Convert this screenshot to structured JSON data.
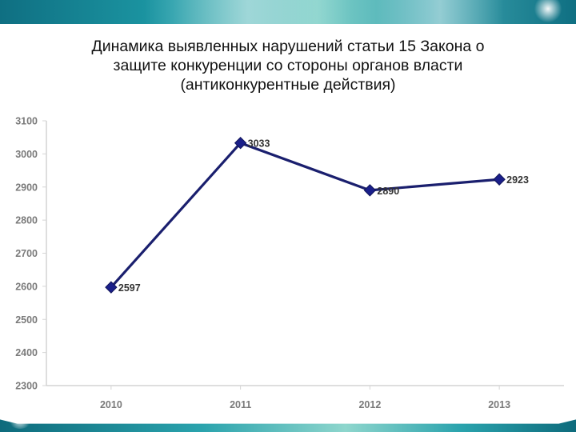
{
  "slide": {
    "title": "Динамика выявленных нарушений статьи 15 Закона о\nзащите конкуренции со стороны органов власти\n(антиконкурентные действия)"
  },
  "colors": {
    "series_line": "#1a1f6e",
    "marker": "#1a1f8a",
    "banner_teal": "#1d9aa6"
  },
  "chart_data": {
    "type": "line",
    "title": "",
    "xlabel": "",
    "ylabel": "",
    "categories": [
      "2010",
      "2011",
      "2012",
      "2013"
    ],
    "series": [
      {
        "values": [
          2597,
          3033,
          2890,
          2923
        ]
      }
    ],
    "data_labels": [
      "2597",
      "3033",
      "2890",
      "2923"
    ],
    "yticks": [
      "2300",
      "2400",
      "2500",
      "2600",
      "2700",
      "2800",
      "2900",
      "3000",
      "3100"
    ],
    "ylim": [
      2300,
      3100
    ],
    "grid": false,
    "legend": "none",
    "marker": "diamond"
  }
}
